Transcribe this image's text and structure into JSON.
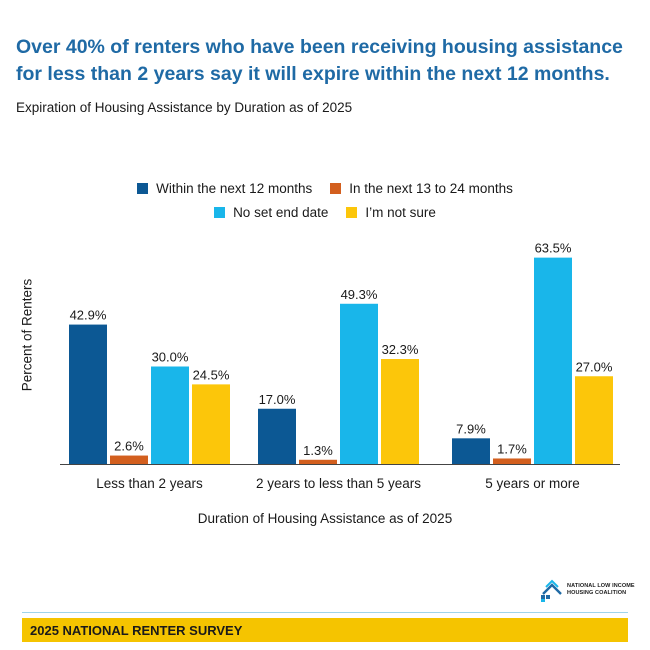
{
  "headline": "Over 40% of renters who have been receiving housing assistance for less than 2 years say it will expire within the next 12 months.",
  "subtitle": "Expiration of Housing Assistance by Duration as of 2025",
  "logo": {
    "line1": "NATIONAL LOW INCOME",
    "line2": "HOUSING COALITION"
  },
  "footer": {
    "label": "2025 NATIONAL RENTER SURVEY"
  },
  "chart_data": {
    "type": "bar",
    "title": "Expiration of Housing Assistance by Duration as of 2025",
    "xlabel": "Duration of Housing Assistance as of 2025",
    "ylabel": "Percent of Renters",
    "ylim": [
      0,
      70
    ],
    "grid": false,
    "legend_position": "top-center",
    "categories": [
      "Less than 2 years",
      "2 years to less than 5 years",
      "5 years or more"
    ],
    "series": [
      {
        "name": "Within the next 12 months",
        "color": "#0c5894",
        "values": [
          42.9,
          17.0,
          7.9
        ],
        "labels": [
          "42.9%",
          "17.0%",
          "7.9%"
        ]
      },
      {
        "name": "In the next 13 to 24 months",
        "color": "#d35f1e",
        "values": [
          2.6,
          1.3,
          1.7
        ],
        "labels": [
          "2.6%",
          "1.3%",
          "1.7%"
        ]
      },
      {
        "name": "No set end date",
        "color": "#19b6ea",
        "values": [
          30.0,
          49.3,
          63.5
        ],
        "labels": [
          "30.0%",
          "49.3%",
          "63.5%"
        ]
      },
      {
        "name": "I’m not sure",
        "color": "#fcc60a",
        "values": [
          24.5,
          32.3,
          27.0
        ],
        "labels": [
          "24.5%",
          "32.3%",
          "27.0%"
        ]
      }
    ]
  }
}
